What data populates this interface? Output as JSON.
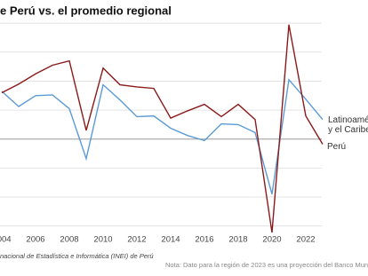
{
  "chart_data": {
    "type": "line",
    "title": "e Perú vs. el promedio regional",
    "x": [
      2004,
      2005,
      2006,
      2007,
      2008,
      2009,
      2010,
      2011,
      2012,
      2013,
      2014,
      2015,
      2016,
      2017,
      2018,
      2019,
      2020,
      2021,
      2022,
      2023
    ],
    "series": [
      {
        "name": "Latinoamérica y el Caribe",
        "color": "#5b9bd5",
        "values": [
          6.6,
          4.5,
          6.0,
          6.1,
          4.2,
          -2.7,
          7.5,
          5.4,
          3.1,
          3.2,
          1.5,
          0.5,
          -0.2,
          2.1,
          2.0,
          0.9,
          -7.6,
          8.2,
          5.5,
          2.7
        ]
      },
      {
        "name": "Perú",
        "color": "#8b1a1a",
        "values": [
          6.4,
          7.6,
          9.0,
          10.2,
          10.8,
          1.2,
          9.8,
          7.5,
          7.2,
          7.0,
          2.9,
          3.9,
          4.8,
          3.1,
          4.8,
          2.7,
          -12.9,
          15.8,
          3.2,
          -0.7
        ]
      }
    ],
    "xlim": [
      2004,
      2023
    ],
    "xticks": [
      2004,
      2006,
      2008,
      2010,
      2012,
      2014,
      2016,
      2018,
      2020,
      2022
    ],
    "ylim": [
      -14,
      17
    ],
    "yticks": [
      -12,
      -8,
      -4,
      0,
      4,
      8,
      12,
      16
    ],
    "grid": true,
    "source": "nacional de Estadística e Informática (INEI) de Perú",
    "note": "Nota: Dato para la región de 2023 es una proyección del Banco Mun"
  }
}
